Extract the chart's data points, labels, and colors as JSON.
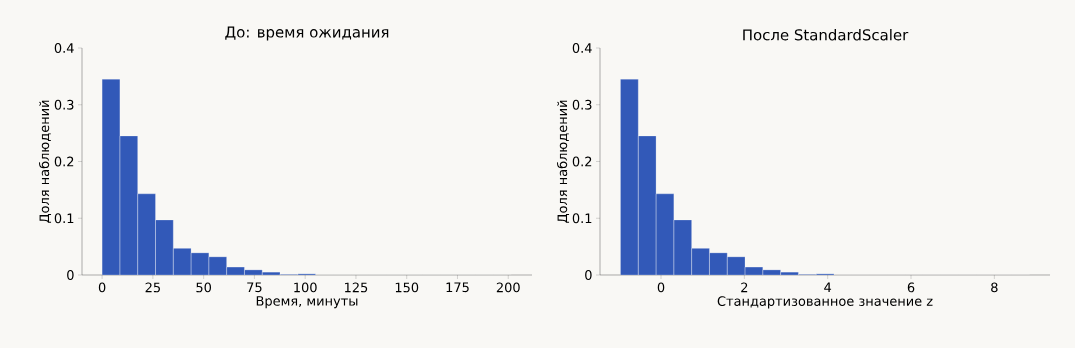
{
  "chart_data": [
    {
      "type": "histogram",
      "title": "До: время ожидания",
      "xlabel": "Время, минуты",
      "ylabel": "Доля наблюдений",
      "color": "#3259b8",
      "bins": [
        0,
        8.76,
        17.52,
        26.28,
        35.04,
        43.8,
        52.56,
        61.32,
        70.08,
        78.84,
        87.6,
        96.36,
        105.12,
        113.88,
        122.64,
        131.4,
        140.16,
        148.92,
        157.68,
        166.44,
        175.2,
        183.96,
        192.72,
        201.48
      ],
      "values": [
        0.345,
        0.245,
        0.143,
        0.097,
        0.047,
        0.039,
        0.032,
        0.014,
        0.009,
        0.005,
        0.001,
        0.002,
        0,
        0,
        0,
        0,
        0,
        0,
        0,
        0,
        0,
        0,
        0
      ],
      "xlim": [
        -9.9,
        211.7
      ],
      "ylim": [
        0,
        0.4
      ],
      "xticks": [
        0,
        25,
        50,
        75,
        100,
        125,
        150,
        175,
        200
      ],
      "yticks": [
        0,
        0.1,
        0.2,
        0.3,
        0.4
      ],
      "grid": false
    },
    {
      "type": "histogram",
      "title": "После StandardScaler",
      "xlabel": "Стандартизованное значение z",
      "ylabel": "Доля наблюдений",
      "color": "#3259b8",
      "bins": [
        -0.973,
        -0.546,
        -0.119,
        0.308,
        0.735,
        1.162,
        1.589,
        2.016,
        2.443,
        2.87,
        3.297,
        3.724,
        4.151,
        4.578,
        5.005,
        5.432,
        5.859,
        6.286,
        6.713,
        7.14,
        7.567,
        7.994,
        8.421,
        8.848
      ],
      "values": [
        0.345,
        0.245,
        0.143,
        0.097,
        0.047,
        0.039,
        0.032,
        0.014,
        0.009,
        0.005,
        0.001,
        0.002,
        0,
        0,
        0,
        0,
        0,
        0,
        0,
        0,
        0,
        0,
        0
      ],
      "xlim": [
        -1.464,
        9.336
      ],
      "ylim": [
        0,
        0.4
      ],
      "xticks": [
        0,
        2,
        4,
        6,
        8
      ],
      "yticks": [
        0,
        0.1,
        0.2,
        0.3,
        0.4
      ],
      "grid": false
    }
  ]
}
